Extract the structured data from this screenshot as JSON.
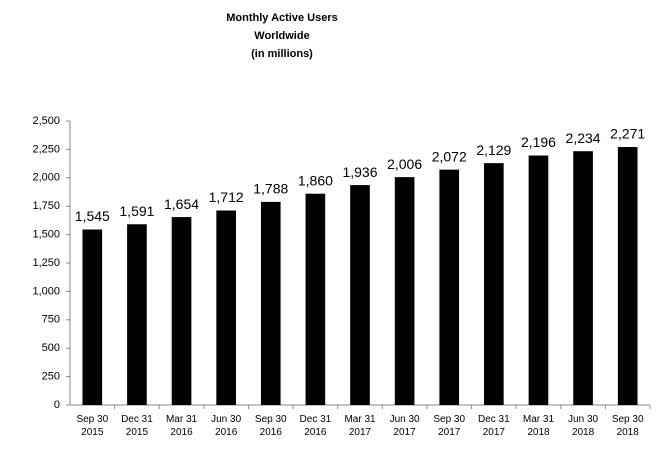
{
  "chart_data": {
    "type": "bar",
    "title": [
      "Monthly Active Users",
      "Worldwide",
      "(in millions)"
    ],
    "categories": [
      "Sep 30\n2015",
      "Dec 31\n2015",
      "Mar 31\n2016",
      "Jun 30\n2016",
      "Sep 30\n2016",
      "Dec 31\n2016",
      "Mar 31\n2017",
      "Jun 30\n2017",
      "Sep 30\n2017",
      "Dec 31\n2017",
      "Mar 31\n2018",
      "Jun 30\n2018",
      "Sep 30\n2018"
    ],
    "values": [
      1545,
      1591,
      1654,
      1712,
      1788,
      1860,
      1936,
      2006,
      2072,
      2129,
      2196,
      2234,
      2271
    ],
    "value_labels": [
      "1,545",
      "1,591",
      "1,654",
      "1,712",
      "1,788",
      "1,860",
      "1,936",
      "2,006",
      "2,072",
      "2,129",
      "2,196",
      "2,234",
      "2,271"
    ],
    "color": "#000000",
    "ylim": [
      0,
      2500
    ],
    "yticks": [
      0,
      250,
      500,
      750,
      {
        "value": 1000,
        "label": "1,000"
      },
      {
        "value": 1250,
        "label": "1,250"
      },
      {
        "value": 1500,
        "label": "1,500"
      },
      {
        "value": 1750,
        "label": "1,750"
      },
      {
        "value": 2000,
        "label": "2,000"
      },
      {
        "value": 2250,
        "label": "2,250"
      },
      {
        "value": 2500,
        "label": "2,500"
      }
    ],
    "grid": false
  }
}
